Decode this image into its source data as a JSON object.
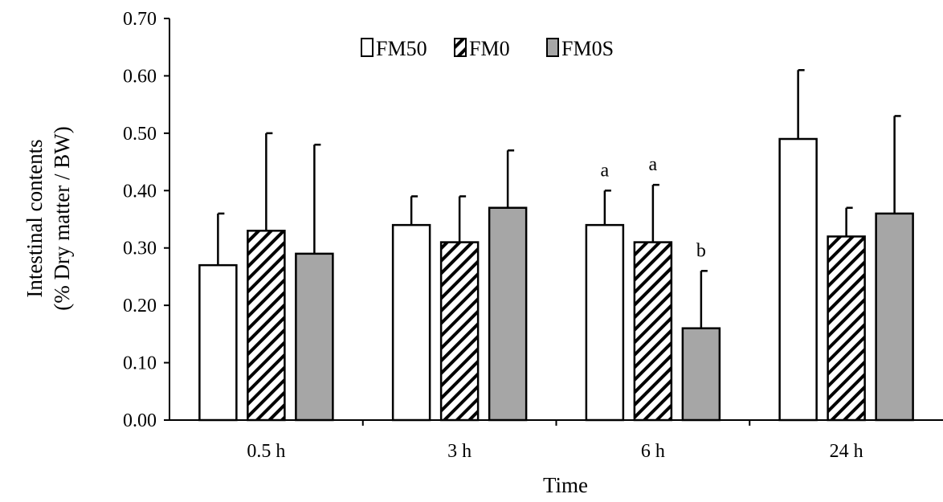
{
  "chart_data": {
    "type": "bar",
    "title": "",
    "xlabel": "Time",
    "ylabel_line1": "Intestinal  contents",
    "ylabel_line2": "(% Dry matter / BW)",
    "ylim": [
      0,
      0.7
    ],
    "yticks": [
      "0.00",
      "0.10",
      "0.20",
      "0.30",
      "0.40",
      "0.50",
      "0.60",
      "0.70"
    ],
    "categories": [
      "0.5 h",
      "3 h",
      "6 h",
      "24 h"
    ],
    "legend_position": "top-center",
    "series": [
      {
        "name": "FM50",
        "fill": "#ffffff",
        "pattern": "solid",
        "values": [
          0.27,
          0.34,
          0.34,
          0.49
        ],
        "errors": [
          0.09,
          0.05,
          0.06,
          0.12
        ],
        "sig_labels": [
          "",
          "",
          "a",
          ""
        ]
      },
      {
        "name": "FM0",
        "fill": "#ffffff",
        "pattern": "diagonal-hatch",
        "values": [
          0.33,
          0.31,
          0.31,
          0.32
        ],
        "errors": [
          0.17,
          0.08,
          0.1,
          0.05
        ],
        "sig_labels": [
          "",
          "",
          "a",
          ""
        ]
      },
      {
        "name": "FM0S",
        "fill": "#a6a6a6",
        "pattern": "solid",
        "values": [
          0.29,
          0.37,
          0.16,
          0.36
        ],
        "errors": [
          0.19,
          0.1,
          0.1,
          0.17
        ],
        "sig_labels": [
          "",
          "",
          "b",
          ""
        ]
      }
    ],
    "colors": {
      "bar_edge": "#000000",
      "axis": "#000000",
      "gray_fill": "#a6a6a6"
    }
  }
}
